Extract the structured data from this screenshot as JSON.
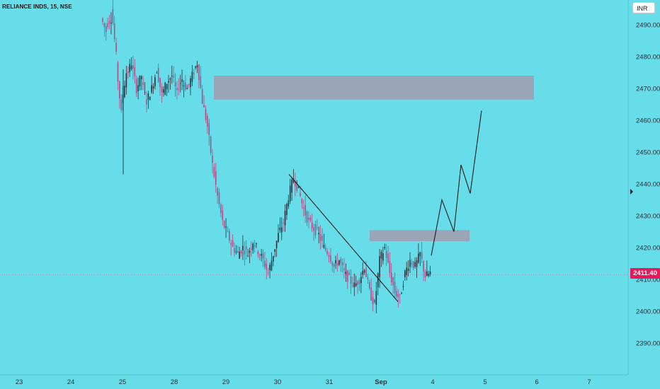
{
  "header": {
    "symbol": "RELIANCE INDS, 15, NSE"
  },
  "currency": "INR",
  "last_price": "2411.40",
  "colors": {
    "background": "#67dde9",
    "candle_up": "#2a2e39",
    "candle_down": "#b24a86",
    "zone": "#9ea0b3",
    "price_badge": "#e5195c",
    "drawing": "#1a1a1a"
  },
  "chart_data": {
    "type": "candlestick",
    "title": "",
    "xlabel": "",
    "ylabel": "",
    "y_axis_position": "right",
    "ylim": [
      2380,
      2495
    ],
    "yticks": [
      2390,
      2400,
      2410,
      2420,
      2430,
      2440,
      2450,
      2460,
      2470,
      2480,
      2490
    ],
    "ytick_labels": [
      "2390.00",
      "2400.00",
      "2410.00",
      "2420.00",
      "2430.00",
      "2440.00",
      "2450.00",
      "2460.00",
      "2470.00",
      "2480.00",
      "2490.00"
    ],
    "x_tick_labels": [
      "23",
      "24",
      "25",
      "28",
      "29",
      "30",
      "31",
      "Sep",
      "4",
      "5",
      "6",
      "7"
    ],
    "last_price": 2411.4,
    "grid": false,
    "candle_path": [
      [
        2492,
        2488
      ],
      [
        2490,
        2492
      ],
      [
        2496,
        2480
      ],
      [
        2478,
        2462
      ],
      [
        2465,
        2475
      ],
      [
        2474,
        2478
      ],
      [
        2478,
        2470
      ],
      [
        2470,
        2474
      ],
      [
        2472,
        2466
      ],
      [
        2466,
        2470
      ],
      [
        2470,
        2476
      ],
      [
        2476,
        2468
      ],
      [
        2468,
        2472
      ],
      [
        2472,
        2474
      ],
      [
        2474,
        2468
      ],
      [
        2470,
        2473
      ],
      [
        2472,
        2470
      ],
      [
        2470,
        2474
      ],
      [
        2474,
        2478
      ],
      [
        2478,
        2466
      ],
      [
        2466,
        2458
      ],
      [
        2458,
        2446
      ],
      [
        2446,
        2436
      ],
      [
        2436,
        2428
      ],
      [
        2428,
        2424
      ],
      [
        2424,
        2420
      ],
      [
        2420,
        2418
      ],
      [
        2418,
        2420
      ],
      [
        2420,
        2418
      ],
      [
        2418,
        2422
      ],
      [
        2422,
        2419
      ],
      [
        2419,
        2416
      ],
      [
        2416,
        2412
      ],
      [
        2412,
        2418
      ],
      [
        2418,
        2424
      ],
      [
        2424,
        2428
      ],
      [
        2428,
        2436
      ],
      [
        2436,
        2442
      ],
      [
        2442,
        2438
      ],
      [
        2438,
        2432
      ],
      [
        2432,
        2428
      ],
      [
        2428,
        2426
      ],
      [
        2426,
        2424
      ],
      [
        2424,
        2420
      ],
      [
        2420,
        2418
      ],
      [
        2418,
        2414
      ],
      [
        2414,
        2416
      ],
      [
        2416,
        2412
      ],
      [
        2412,
        2410
      ],
      [
        2410,
        2408
      ],
      [
        2408,
        2410
      ],
      [
        2410,
        2414
      ],
      [
        2414,
        2406
      ],
      [
        2406,
        2402
      ],
      [
        2402,
        2416
      ],
      [
        2416,
        2420
      ],
      [
        2420,
        2412
      ],
      [
        2412,
        2406
      ],
      [
        2406,
        2404
      ],
      [
        2404,
        2412
      ],
      [
        2412,
        2416
      ],
      [
        2416,
        2414
      ],
      [
        2414,
        2418
      ],
      [
        2418,
        2411
      ],
      [
        2411,
        2412
      ]
    ],
    "zones": [
      {
        "name": "supply-zone",
        "x_from": "29",
        "x_to": "5",
        "y_from": 2466.5,
        "y_to": 2474
      },
      {
        "name": "breakout-zone",
        "x_from": "31",
        "x_to": "4",
        "y_from": 2422,
        "y_to": 2425.5
      }
    ],
    "trendline": {
      "from": [
        "30",
        2443
      ],
      "to": [
        "Sep",
        2403
      ]
    },
    "projection_path": [
      [
        2417.5
      ],
      [
        2435
      ],
      [
        2425
      ],
      [
        2446
      ],
      [
        2437
      ],
      [
        2463
      ]
    ]
  }
}
